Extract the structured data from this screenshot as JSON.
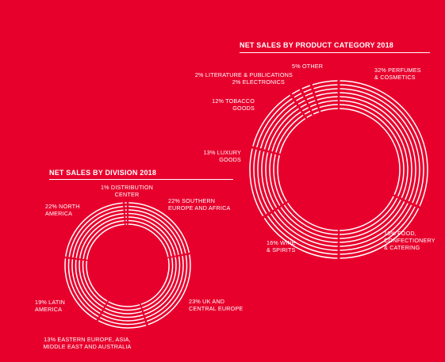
{
  "colors": {
    "background": "#e8002d",
    "foreground": "#ffffff"
  },
  "chart_data": [
    {
      "type": "pie",
      "title": "NET SALES BY PRODUCT CATEGORY 2018",
      "slices": [
        {
          "label": "32% PERFUMES\n& COSMETICS",
          "value": 32
        },
        {
          "label": "18% FOOD,\nCONFECTIONERY\n& CATERING",
          "value": 18
        },
        {
          "label": "16% WINE\n& SPIRITS",
          "value": 16
        },
        {
          "label": "13% LUXURY\nGOODS",
          "value": 13
        },
        {
          "label": "12% TOBACCO\nGOODS",
          "value": 12
        },
        {
          "label": "2% LITERATURE & PUBLICATIONS",
          "value": 2
        },
        {
          "label": "2% ELECTRONICS",
          "value": 2
        },
        {
          "label": "5% OTHER",
          "value": 5
        }
      ]
    },
    {
      "type": "pie",
      "title": "NET SALES BY DIVISION 2018",
      "slices": [
        {
          "label": "22% SOUTHERN\nEUROPE AND AFRICA",
          "value": 22
        },
        {
          "label": "23% UK AND\nCENTRAL EUROPE",
          "value": 23
        },
        {
          "label": "13% EASTERN EUROPE, ASIA,\nMIDDLE EAST AND AUSTRALIA",
          "value": 13
        },
        {
          "label": "19% LATIN\nAMERICA",
          "value": 19
        },
        {
          "label": "22% NORTH\nAMERICA",
          "value": 22
        },
        {
          "label": "1% DISTRIBUTION\nCENTER",
          "value": 1
        }
      ]
    }
  ]
}
